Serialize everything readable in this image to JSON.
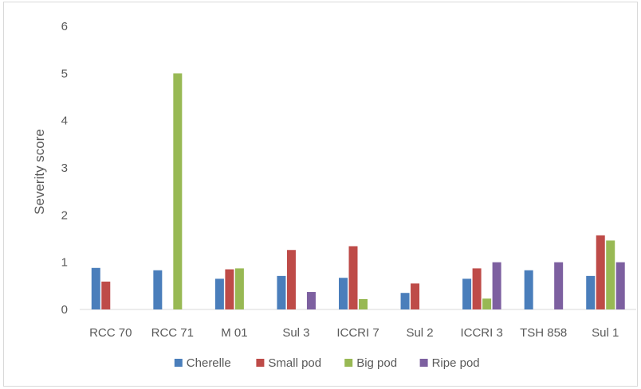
{
  "chart_data": {
    "type": "bar",
    "title": "",
    "xlabel": "",
    "ylabel": "Severity score",
    "ylim": [
      0,
      6
    ],
    "yticks": [
      0,
      1,
      2,
      3,
      4,
      5,
      6
    ],
    "grid": false,
    "legend_position": "bottom",
    "categories": [
      "RCC 70",
      "RCC 71",
      "M 01",
      "Sul 3",
      "ICCRI 7",
      "Sul 2",
      "ICCRI 3",
      "TSH 858",
      "Sul 1"
    ],
    "series": [
      {
        "name": "Cherelle",
        "color": "#4a7ebb",
        "values": [
          0.88,
          0.83,
          0.65,
          0.71,
          0.67,
          0.35,
          0.65,
          0.83,
          0.71
        ]
      },
      {
        "name": "Small pod",
        "color": "#be4b48",
        "values": [
          0.59,
          0,
          0.85,
          1.26,
          1.34,
          0.55,
          0.87,
          0,
          1.57
        ]
      },
      {
        "name": "Big pod",
        "color": "#98b954",
        "values": [
          0,
          5.0,
          0.87,
          0,
          0.22,
          0,
          0.23,
          0,
          1.46
        ]
      },
      {
        "name": "Ripe pod",
        "color": "#7d60a0",
        "values": [
          0,
          0,
          0,
          0.37,
          0,
          0,
          1.0,
          1.0,
          1.0
        ]
      }
    ]
  }
}
